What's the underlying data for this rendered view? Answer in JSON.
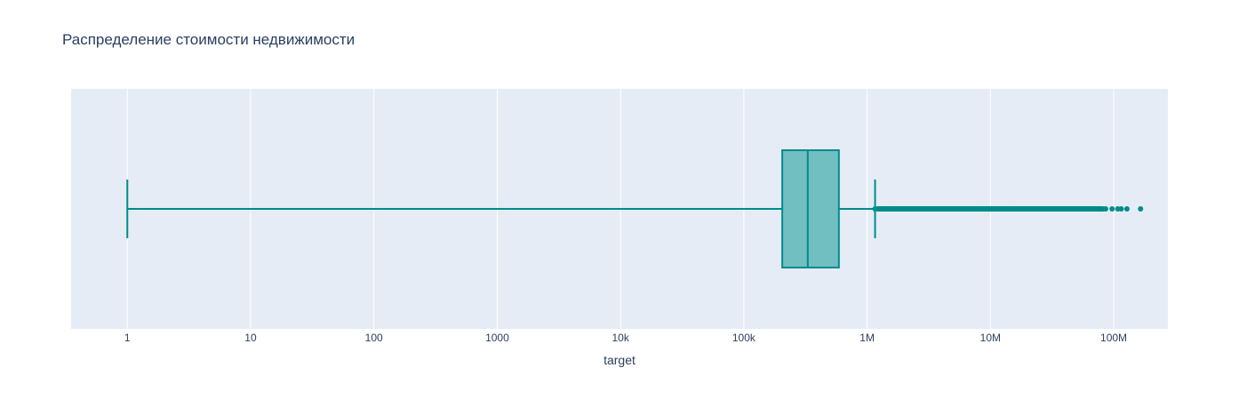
{
  "chart_data": {
    "type": "box",
    "title": "Распределение стоимости недвижимости",
    "xlabel": "target",
    "ylabel": "",
    "x_scale": "log",
    "xlim": [
      0.35,
      275000000
    ],
    "x_ticks": [
      {
        "value": 1,
        "label": "1"
      },
      {
        "value": 10,
        "label": "10"
      },
      {
        "value": 100,
        "label": "100"
      },
      {
        "value": 1000,
        "label": "1000"
      },
      {
        "value": 10000,
        "label": "10k"
      },
      {
        "value": 100000,
        "label": "100k"
      },
      {
        "value": 1000000,
        "label": "1M"
      },
      {
        "value": 10000000,
        "label": "10M"
      },
      {
        "value": 100000000,
        "label": "100M"
      }
    ],
    "grid": true,
    "colors": {
      "plot_bg": "#e5ecf6",
      "grid": "#ffffff",
      "box_line": "#008b8b",
      "box_fill": "#72bfc2"
    },
    "box": {
      "lower_whisker": 1,
      "q1": 205000,
      "median": 330000,
      "q3": 590000,
      "upper_whisker": 1160000
    },
    "outliers": [
      1160000,
      1300000,
      1500000,
      1800000,
      2200000,
      2700000,
      3300000,
      4100000,
      5200000,
      6500000,
      8000000,
      10000000,
      13000000,
      16000000,
      20000000,
      26000000,
      33000000,
      42000000,
      52000000,
      62000000,
      72000000,
      80000000,
      86000000,
      97000000,
      108000000,
      115000000,
      128000000,
      165000000
    ]
  }
}
